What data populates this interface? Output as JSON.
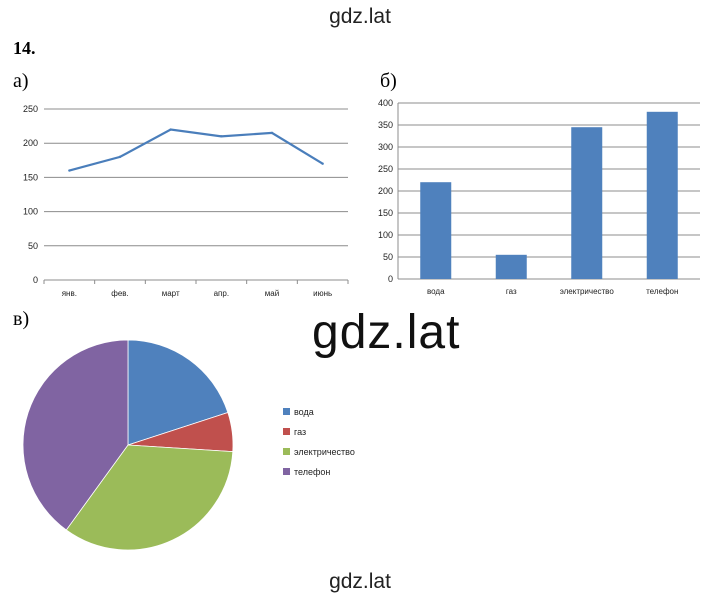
{
  "watermark": {
    "top": "gdz.lat",
    "middle": "gdz.lat",
    "bottom": "gdz.lat"
  },
  "problem_number": "14.",
  "part_labels": {
    "a": "а)",
    "b": "б)",
    "c": "в)"
  },
  "colors": {
    "line": "#4a7ebb",
    "bar": "#4f81bd",
    "pie": [
      "#4f81bd",
      "#c0504d",
      "#9bbb59",
      "#8064a2"
    ],
    "grid": "#8c8c8c"
  },
  "chart_data": [
    {
      "type": "line",
      "categories": [
        "янв.",
        "фев.",
        "март",
        "апр.",
        "май",
        "июнь"
      ],
      "values": [
        160,
        180,
        220,
        210,
        215,
        170
      ],
      "ylim": [
        0,
        250
      ],
      "yticks": [
        0,
        50,
        100,
        150,
        200,
        250
      ],
      "grid": true
    },
    {
      "type": "bar",
      "categories": [
        "вода",
        "газ",
        "электричество",
        "телефон"
      ],
      "values": [
        220,
        55,
        345,
        380
      ],
      "ylim": [
        0,
        400
      ],
      "yticks": [
        0,
        50,
        100,
        150,
        200,
        250,
        300,
        350,
        400
      ],
      "grid": true
    },
    {
      "type": "pie",
      "categories": [
        "вода",
        "газ",
        "электричество",
        "телефон"
      ],
      "values": [
        20,
        6,
        34,
        40
      ],
      "legend": "right"
    }
  ]
}
